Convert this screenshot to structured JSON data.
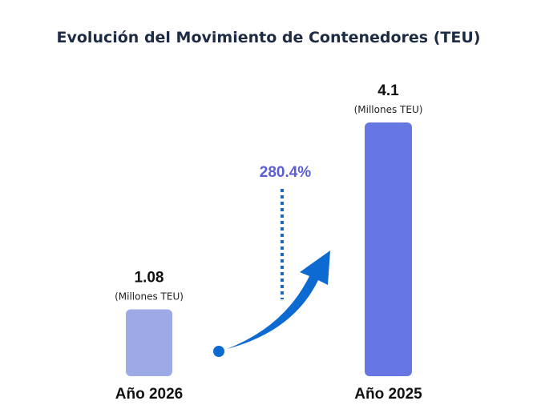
{
  "chart_data": {
    "type": "bar",
    "title": "Evolución del Movimiento de Contenedores (TEU)",
    "categories": [
      "Año 2026",
      "Año 2025"
    ],
    "values": [
      1.08,
      4.1
    ],
    "value_labels": [
      "1.08",
      "4.1"
    ],
    "unit_label": "(Millones TEU)",
    "ylim": [
      0,
      4.5
    ],
    "change_label": "280.4%",
    "colors": {
      "bar_2026": "#9eaae6",
      "bar_2025": "#6677e4",
      "arrow": "#0d6ad0",
      "change_text": "#5a5fd6",
      "dotted_line": "#1668c8",
      "title": "#1d2b45"
    }
  }
}
